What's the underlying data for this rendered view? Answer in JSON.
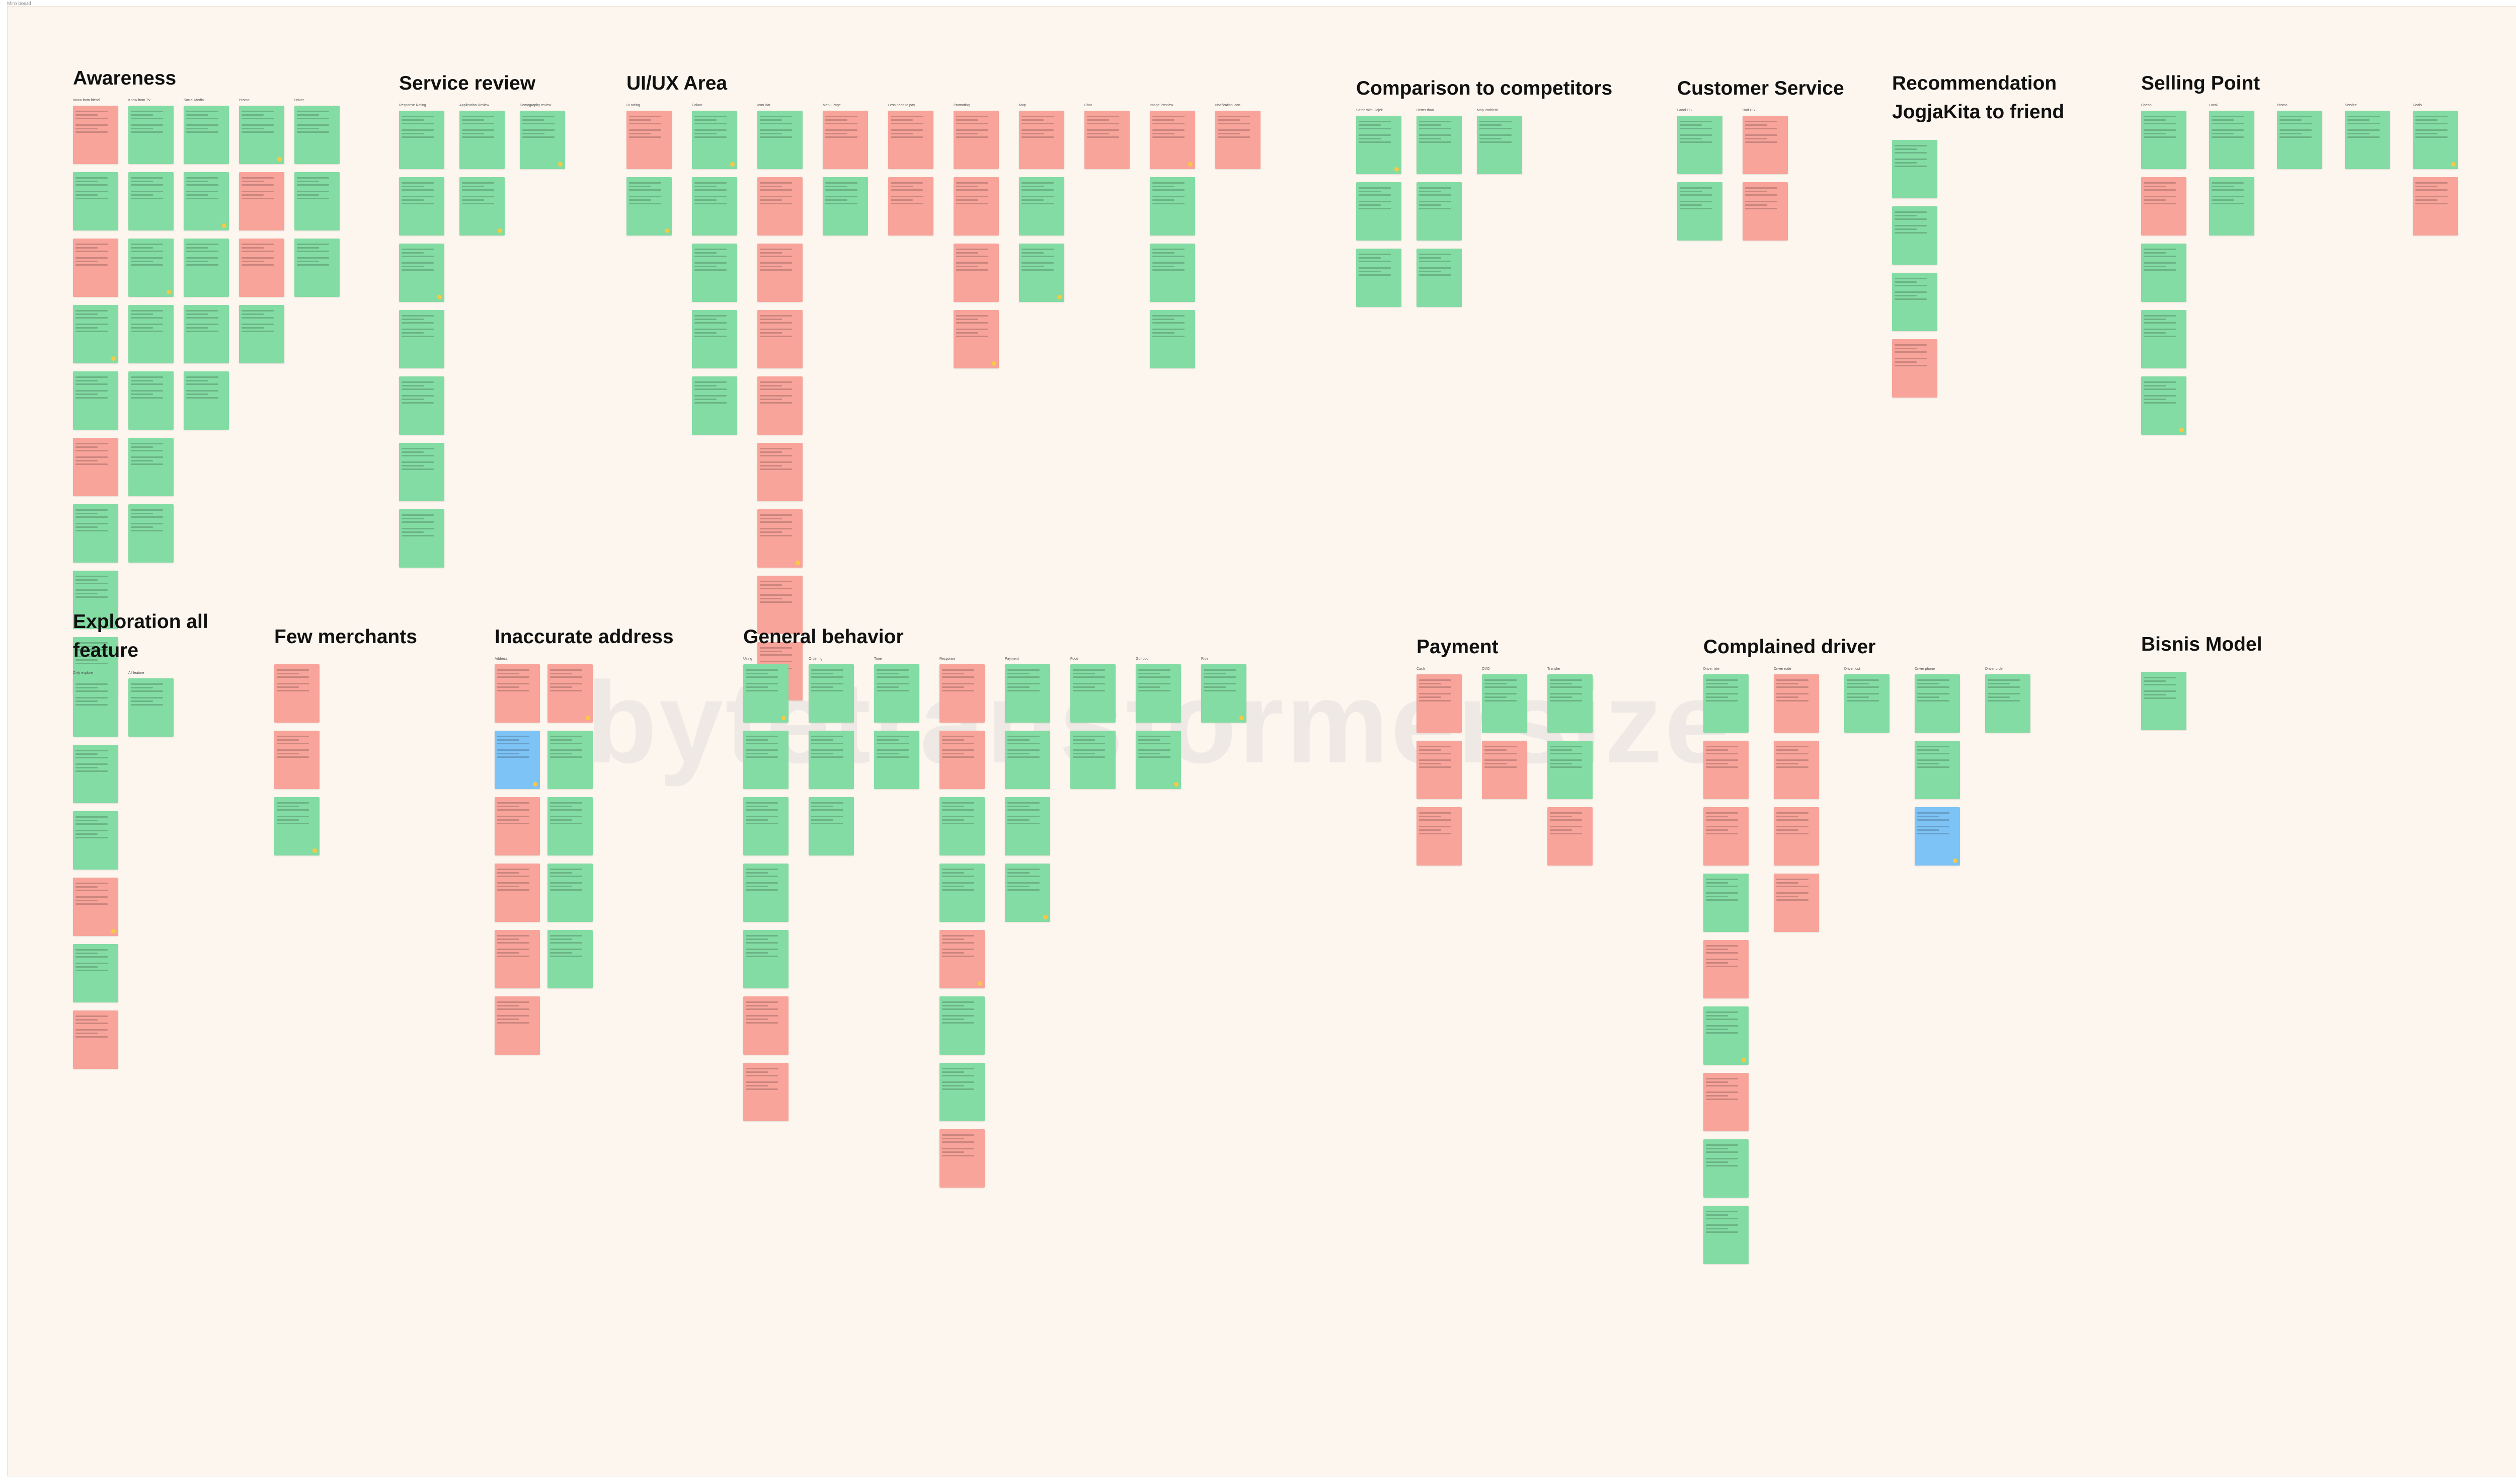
{
  "frame_label": "Miro board",
  "watermark": "bytetransformersize",
  "sections": [
    {
      "id": "awareness",
      "title": "Awareness",
      "cols": [
        {
          "label": "Know form friend",
          "notes": [
            "red?",
            "green",
            "red",
            "green",
            "green",
            "red",
            "green",
            "green",
            "green"
          ]
        },
        {
          "label": "Know from TV",
          "notes": [
            "green",
            "green",
            "green",
            "green",
            "green",
            "green",
            "green"
          ]
        },
        {
          "label": "Social Media",
          "notes": [
            "green",
            "green",
            "green",
            "green",
            "green"
          ]
        },
        {
          "label": "Promo",
          "notes": [
            "green",
            "red",
            "red",
            "green"
          ]
        },
        {
          "label": "Driver",
          "notes": [
            "green",
            "green",
            "green"
          ]
        }
      ]
    },
    {
      "id": "service-review",
      "title": "Service review",
      "cols": [
        {
          "label": "Response Rating",
          "notes": [
            "green",
            "green",
            "green",
            "green",
            "green",
            "green",
            "green"
          ]
        },
        {
          "label": "Application Review",
          "notes": [
            "green",
            "green"
          ]
        },
        {
          "label": "Demography review",
          "notes": [
            "green"
          ]
        }
      ]
    },
    {
      "id": "ui-ux",
      "title": "UI/UX Area",
      "cols": [
        {
          "label": "UI rating",
          "notes": [
            "red",
            "green"
          ]
        },
        {
          "label": "Colour",
          "notes": [
            "green",
            "green",
            "green",
            "green",
            "green"
          ]
        },
        {
          "label": "Icon Bar",
          "notes": [
            "green",
            "red",
            "red",
            "red",
            "red",
            "red",
            "red",
            "red",
            "red"
          ]
        },
        {
          "label": "Menu Page",
          "notes": [
            "red",
            "green"
          ]
        },
        {
          "label": "Less need to pay",
          "notes": [
            "red",
            "red"
          ]
        },
        {
          "label": "Promoting",
          "notes": [
            "red",
            "red",
            "red",
            "red"
          ]
        },
        {
          "label": "Map",
          "notes": [
            "red",
            "green",
            "green"
          ]
        },
        {
          "label": "Chat",
          "notes": [
            "red"
          ]
        },
        {
          "label": "Image Preview",
          "notes": [
            "red",
            "green",
            "green",
            "green"
          ]
        },
        {
          "label": "Notification Icon",
          "notes": [
            "red"
          ]
        }
      ]
    },
    {
      "id": "comparison",
      "title": "Comparison to competitors",
      "cols": [
        {
          "label": "Same with Gojek",
          "notes": [
            "green",
            "green",
            "green"
          ]
        },
        {
          "label": "Better than",
          "notes": [
            "green",
            "green",
            "green"
          ]
        },
        {
          "label": "Map Problem",
          "notes": [
            "green"
          ]
        }
      ]
    },
    {
      "id": "customer-service",
      "title": "Customer Service",
      "cols": [
        {
          "label": "Good CS",
          "notes": [
            "green",
            "green"
          ]
        },
        {
          "label": "Bad CS",
          "notes": [
            "red",
            "red"
          ]
        }
      ]
    },
    {
      "id": "recommendation",
      "title": "Recommendation JogjaKita to friend",
      "cols": [
        {
          "label": "",
          "notes": [
            "green",
            "green",
            "green",
            "red"
          ]
        }
      ]
    },
    {
      "id": "selling-point",
      "title": "Selling Point",
      "cols": [
        {
          "label": "Cheap",
          "notes": [
            "green",
            "red",
            "green",
            "green",
            "green"
          ]
        },
        {
          "label": "Local",
          "notes": [
            "green",
            "green"
          ]
        },
        {
          "label": "Promo",
          "notes": [
            "green"
          ]
        },
        {
          "label": "Service",
          "notes": [
            "green"
          ]
        },
        {
          "label": "Deals",
          "notes": [
            "green",
            "red"
          ]
        }
      ]
    },
    {
      "id": "exploration",
      "title": "Exploration all feature",
      "cols": [
        {
          "label": "Only explore",
          "notes": [
            "green",
            "green",
            "green",
            "red",
            "green",
            "red"
          ]
        },
        {
          "label": "All feature",
          "notes": [
            "green"
          ]
        }
      ]
    },
    {
      "id": "few-merchants",
      "title": "Few merchants",
      "cols": [
        {
          "label": "",
          "notes": [
            "red",
            "red",
            "green"
          ]
        }
      ]
    },
    {
      "id": "inaccurate-address",
      "title": "Inaccurate address",
      "cols": [
        {
          "label": "Address",
          "notes": [
            "red",
            "blue",
            "red",
            "red",
            "red",
            "red"
          ]
        },
        {
          "label": "",
          "notes": [
            "red",
            "green",
            "green",
            "green",
            "green"
          ]
        }
      ]
    },
    {
      "id": "general-behavior",
      "title": "General behavior",
      "cols": [
        {
          "label": "Using",
          "notes": [
            "green",
            "green",
            "green",
            "green",
            "green",
            "red",
            "red"
          ]
        },
        {
          "label": "Ordering",
          "notes": [
            "green",
            "green",
            "green"
          ]
        },
        {
          "label": "Time",
          "notes": [
            "green",
            "green"
          ]
        },
        {
          "label": "Response",
          "notes": [
            "red",
            "red",
            "green",
            "green",
            "red",
            "green",
            "green",
            "red"
          ]
        },
        {
          "label": "Payment",
          "notes": [
            "green",
            "green",
            "green",
            "green"
          ]
        },
        {
          "label": "Food",
          "notes": [
            "green",
            "green"
          ]
        },
        {
          "label": "Go-food",
          "notes": [
            "green",
            "green"
          ]
        },
        {
          "label": "Ride",
          "notes": [
            "green"
          ]
        }
      ]
    },
    {
      "id": "payment",
      "title": "Payment",
      "cols": [
        {
          "label": "Cash",
          "notes": [
            "red",
            "red",
            "red"
          ]
        },
        {
          "label": "OVO",
          "notes": [
            "green",
            "red"
          ]
        },
        {
          "label": "Transfer",
          "notes": [
            "green",
            "green",
            "red"
          ]
        }
      ]
    },
    {
      "id": "complained-driver",
      "title": "Complained driver",
      "cols": [
        {
          "label": "Driver late",
          "notes": [
            "green",
            "red",
            "red",
            "green",
            "red",
            "green",
            "red",
            "green",
            "green"
          ]
        },
        {
          "label": "Driver rude",
          "notes": [
            "red",
            "red",
            "red",
            "red"
          ]
        },
        {
          "label": "Driver lost",
          "notes": [
            "green"
          ]
        },
        {
          "label": "Driver phone",
          "notes": [
            "green",
            "green",
            "blue"
          ]
        },
        {
          "label": "Driver order",
          "notes": [
            "green"
          ]
        }
      ]
    },
    {
      "id": "bisnis-model",
      "title": "Bisnis Model",
      "cols": [
        {
          "label": "",
          "notes": [
            "green"
          ]
        }
      ]
    }
  ]
}
